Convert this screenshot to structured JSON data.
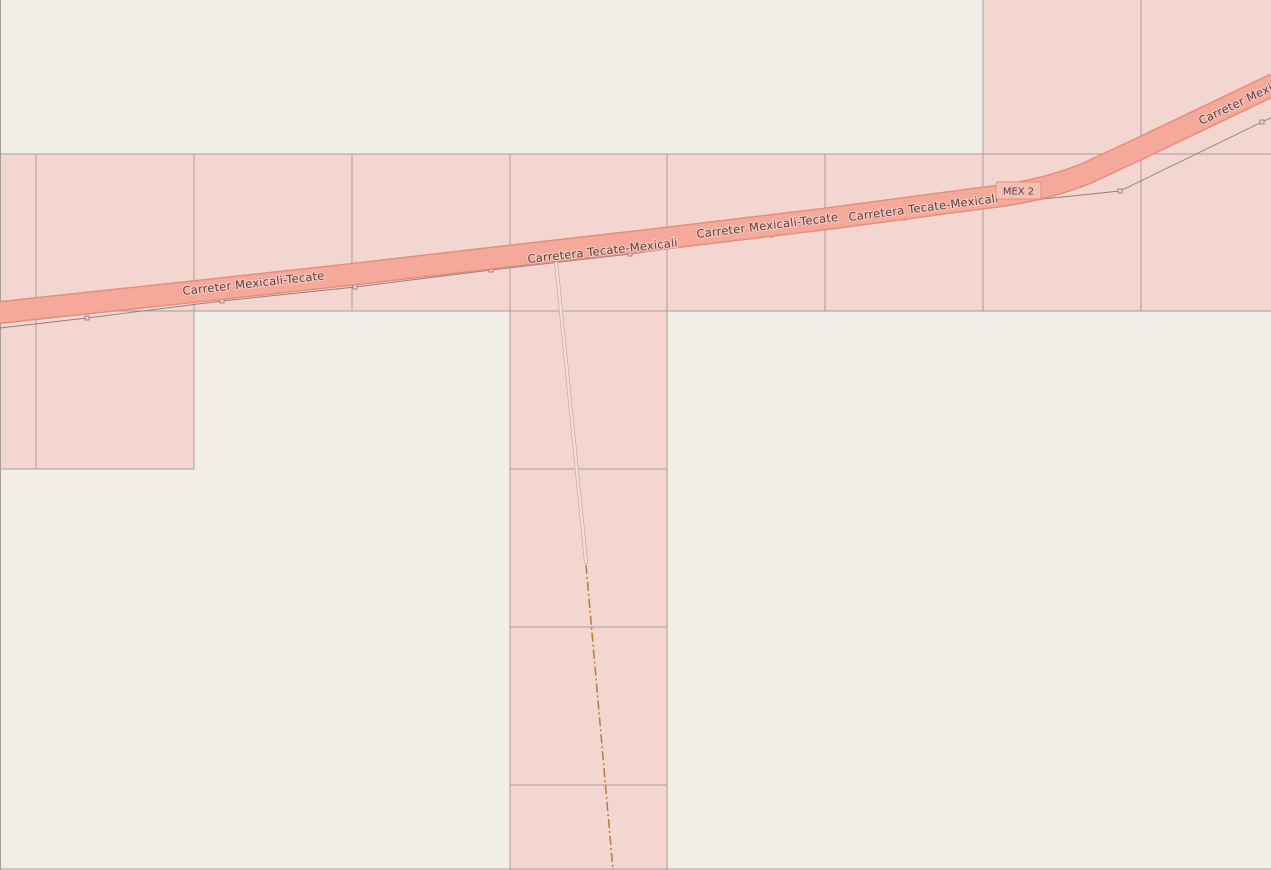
{
  "map": {
    "colors": {
      "background": "#f2efe9",
      "tile_fill": "#f4d6d1",
      "tile_border": "#a89c98",
      "road_fill": "#f5a99a",
      "road_casing": "#e68d7d",
      "service_road": "#f7dcdc",
      "track": "#b87a3c",
      "thin_line": "#8a8080"
    },
    "road_labels": {
      "l1": "Carreter Mexicali-Tecate",
      "l2": "Carretera Tecate-Mexicali",
      "l3": "Carreter Mexicali-Tecate",
      "l4": "Carretera Tecate-Mexicali",
      "l5": "Carreter Mexicali-Tecate"
    },
    "route_shield": {
      "label": "MEX 2"
    }
  }
}
